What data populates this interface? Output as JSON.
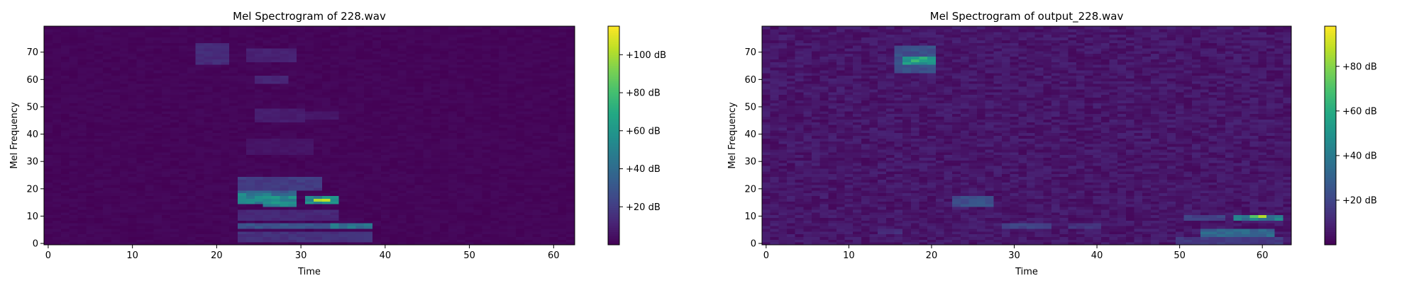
{
  "chart_data": [
    {
      "type": "heatmap",
      "title": "Mel Spectrogram of 228.wav",
      "xlabel": "Time",
      "ylabel": "Mel Frequency",
      "xlim": [
        -0.5,
        62.5
      ],
      "ylim": [
        -0.5,
        79.5
      ],
      "xticks": [
        0,
        10,
        20,
        30,
        40,
        50,
        60
      ],
      "yticks": [
        0,
        10,
        20,
        30,
        40,
        50,
        60,
        70
      ],
      "colorbar": {
        "range": [
          0,
          115
        ],
        "ticks": [
          20,
          40,
          60,
          80,
          100
        ],
        "tick_labels": [
          "+20 dB",
          "+40 dB",
          "+60 dB",
          "+80 dB",
          "+100 dB"
        ]
      },
      "colormap": "viridis",
      "grid": false,
      "features": [
        {
          "t": [
            18,
            21
          ],
          "f": [
            66,
            73
          ],
          "value": 16
        },
        {
          "t": [
            24,
            29
          ],
          "f": [
            67,
            71
          ],
          "value": 12
        },
        {
          "t": [
            25,
            28
          ],
          "f": [
            59,
            61
          ],
          "value": 14
        },
        {
          "t": [
            25,
            30
          ],
          "f": [
            45,
            49
          ],
          "value": 10
        },
        {
          "t": [
            31,
            34
          ],
          "f": [
            46,
            48
          ],
          "value": 8
        },
        {
          "t": [
            24,
            31
          ],
          "f": [
            33,
            38
          ],
          "value": 7
        },
        {
          "t": [
            23,
            32
          ],
          "f": [
            20,
            24
          ],
          "value": 22
        },
        {
          "t": [
            23,
            29
          ],
          "f": [
            17,
            19
          ],
          "value": 38
        },
        {
          "t": [
            23,
            26
          ],
          "f": [
            15,
            18
          ],
          "value": 55
        },
        {
          "t": [
            26,
            29
          ],
          "f": [
            14,
            17
          ],
          "value": 60
        },
        {
          "t": [
            31,
            34
          ],
          "f": [
            15,
            17
          ],
          "value": 60
        },
        {
          "t": [
            32,
            33
          ],
          "f": [
            16,
            16
          ],
          "value": 112
        },
        {
          "t": [
            23,
            38
          ],
          "f": [
            6,
            7
          ],
          "value": 32
        },
        {
          "t": [
            34,
            38
          ],
          "f": [
            6,
            7
          ],
          "value": 48
        },
        {
          "t": [
            23,
            38
          ],
          "f": [
            1,
            4
          ],
          "value": 18
        },
        {
          "t": [
            23,
            34
          ],
          "f": [
            9,
            12
          ],
          "value": 14
        }
      ]
    },
    {
      "type": "heatmap",
      "title": "Mel Spectrogram of output_228.wav",
      "xlabel": "Time",
      "ylabel": "Mel Frequency",
      "xlim": [
        -0.5,
        63.5
      ],
      "ylim": [
        -0.5,
        79.5
      ],
      "xticks": [
        0,
        10,
        20,
        30,
        40,
        50,
        60
      ],
      "yticks": [
        0,
        10,
        20,
        30,
        40,
        50,
        60,
        70
      ],
      "colorbar": {
        "range": [
          0,
          98
        ],
        "ticks": [
          20,
          40,
          60,
          80
        ],
        "tick_labels": [
          "+20 dB",
          "+40 dB",
          "+60 dB",
          "+80 dB"
        ]
      },
      "colormap": "viridis",
      "grid": false,
      "features": [
        {
          "t": [
            16,
            20
          ],
          "f": [
            63,
            72
          ],
          "value": 26
        },
        {
          "t": [
            17,
            20
          ],
          "f": [
            66,
            68
          ],
          "value": 60
        },
        {
          "t": [
            18,
            18
          ],
          "f": [
            67,
            67
          ],
          "value": 85
        },
        {
          "t": [
            23,
            27
          ],
          "f": [
            14,
            17
          ],
          "value": 26
        },
        {
          "t": [
            29,
            34
          ],
          "f": [
            6,
            7
          ],
          "value": 22
        },
        {
          "t": [
            37,
            40
          ],
          "f": [
            6,
            7
          ],
          "value": 16
        },
        {
          "t": [
            14,
            16
          ],
          "f": [
            4,
            5
          ],
          "value": 14
        },
        {
          "t": [
            51,
            55
          ],
          "f": [
            9,
            10
          ],
          "value": 22
        },
        {
          "t": [
            53,
            61
          ],
          "f": [
            3,
            5
          ],
          "value": 36
        },
        {
          "t": [
            57,
            62
          ],
          "f": [
            9,
            10
          ],
          "value": 45
        },
        {
          "t": [
            59,
            60
          ],
          "f": [
            10,
            10
          ],
          "value": 95
        },
        {
          "t": [
            50,
            62
          ],
          "f": [
            0,
            2
          ],
          "value": 18
        }
      ]
    }
  ]
}
